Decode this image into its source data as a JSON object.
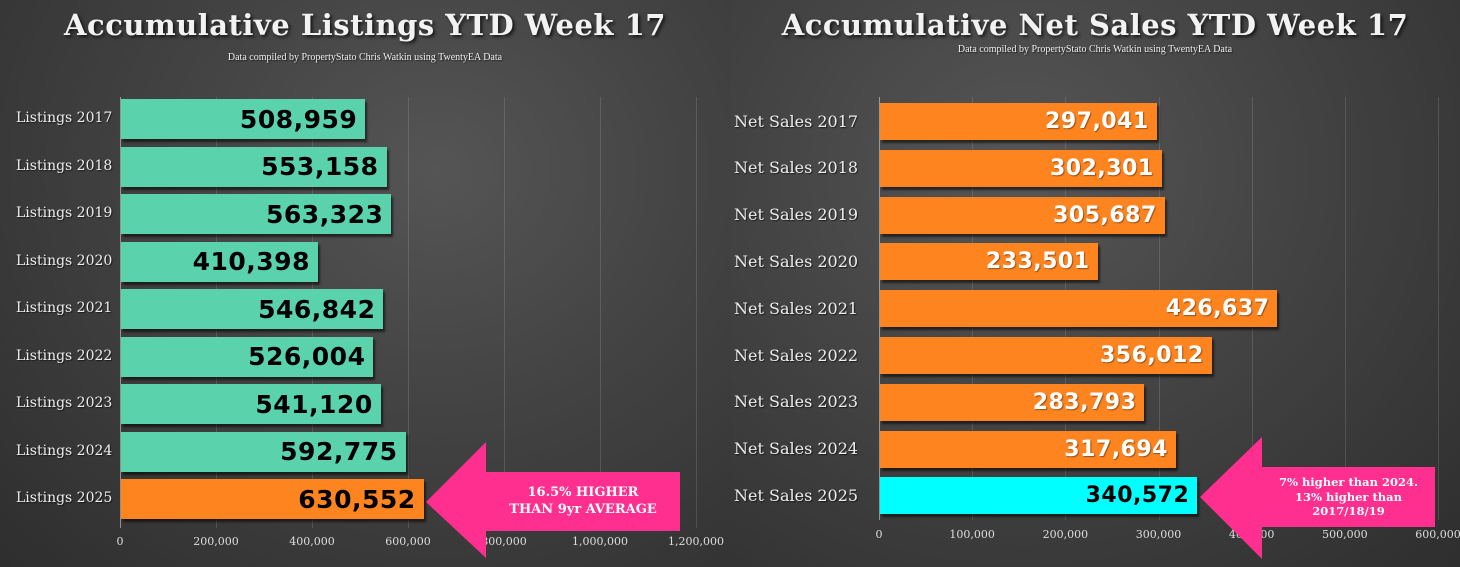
{
  "chart_data": [
    {
      "type": "bar",
      "orientation": "horizontal",
      "title": "Accumulative Listings YTD Week 17",
      "subtitle": "Data compiled by PropertyStato Chris Watkin using TwentyEA Data",
      "categories": [
        "Listings 2017",
        "Listings 2018",
        "Listings 2019",
        "Listings 2020",
        "Listings 2021",
        "Listings 2022",
        "Listings 2023",
        "Listings 2024",
        "Listings 2025"
      ],
      "values": [
        508959,
        553158,
        563323,
        410398,
        546842,
        526004,
        541120,
        592775,
        630552
      ],
      "value_labels": [
        "508,959",
        "553,158",
        "563,323",
        "410,398",
        "546,842",
        "526,004",
        "541,120",
        "592,775",
        "630,552"
      ],
      "bar_colors": [
        "#5ad3ad",
        "#5ad3ad",
        "#5ad3ad",
        "#5ad3ad",
        "#5ad3ad",
        "#5ad3ad",
        "#5ad3ad",
        "#5ad3ad",
        "#fd841f"
      ],
      "value_label_color": "#000000",
      "xlabel": "",
      "ylabel": "",
      "xlim": [
        0,
        1200000
      ],
      "xticks": [
        0,
        200000,
        400000,
        600000,
        800000,
        1000000,
        1200000
      ],
      "xtick_labels": [
        "0",
        "200,000",
        "400,000",
        "600,000",
        "800,000",
        "1,000,000",
        "1,200,000"
      ],
      "grid": true,
      "legend": null,
      "annotation": {
        "text_lines": [
          "16.5% HIGHER",
          "THAN 9yr AVERAGE"
        ],
        "color": "#fe2f8f",
        "points_to": "Listings 2025"
      }
    },
    {
      "type": "bar",
      "orientation": "horizontal",
      "title": "Accumulative Net Sales YTD Week 17",
      "subtitle": "Data compiled by PropertyStato Chris Watkin using TwentyEA Data",
      "categories": [
        "Net Sales 2017",
        "Net Sales 2018",
        "Net Sales 2019",
        "Net Sales 2020",
        "Net Sales 2021",
        "Net Sales 2022",
        "Net Sales 2023",
        "Net Sales 2024",
        "Net Sales 2025"
      ],
      "values": [
        297041,
        302301,
        305687,
        233501,
        426637,
        356012,
        283793,
        317694,
        340572
      ],
      "value_labels": [
        "297,041",
        "302,301",
        "305,687",
        "233,501",
        "426,637",
        "356,012",
        "283,793",
        "317,694",
        "340,572"
      ],
      "bar_colors": [
        "#fd841f",
        "#fd841f",
        "#fd841f",
        "#fd841f",
        "#fd841f",
        "#fd841f",
        "#fd841f",
        "#fd841f",
        "#00ffff"
      ],
      "value_label_colors": [
        "#ffffff",
        "#ffffff",
        "#ffffff",
        "#ffffff",
        "#ffffff",
        "#ffffff",
        "#ffffff",
        "#ffffff",
        "#000000"
      ],
      "xlabel": "",
      "ylabel": "",
      "xlim": [
        0,
        600000
      ],
      "xticks": [
        0,
        100000,
        200000,
        300000,
        400000,
        500000,
        600000
      ],
      "xtick_labels": [
        "0",
        "100,000",
        "200,000",
        "300,000",
        "400,000",
        "500,000",
        "600,000"
      ],
      "grid": true,
      "legend": null,
      "annotation": {
        "text_lines": [
          "7% higher than 2024.",
          "13% higher than",
          "2017/18/19"
        ],
        "color": "#fe2f8f",
        "points_to": "Net Sales 2025"
      }
    }
  ],
  "left": {
    "title": "Accumulative Listings YTD Week 17",
    "subtitle": "Data compiled by PropertyStato Chris Watkin using TwentyEA Data",
    "callout": {
      "line1": "16.5% HIGHER",
      "line2": "THAN 9yr AVERAGE"
    }
  },
  "right": {
    "title": "Accumulative Net Sales YTD Week 17",
    "subtitle": "Data compiled by PropertyStato Chris Watkin using TwentyEA Data",
    "callout": {
      "line1": "7% higher than 2024.",
      "line2": "13% higher than",
      "line3": "2017/18/19"
    }
  }
}
